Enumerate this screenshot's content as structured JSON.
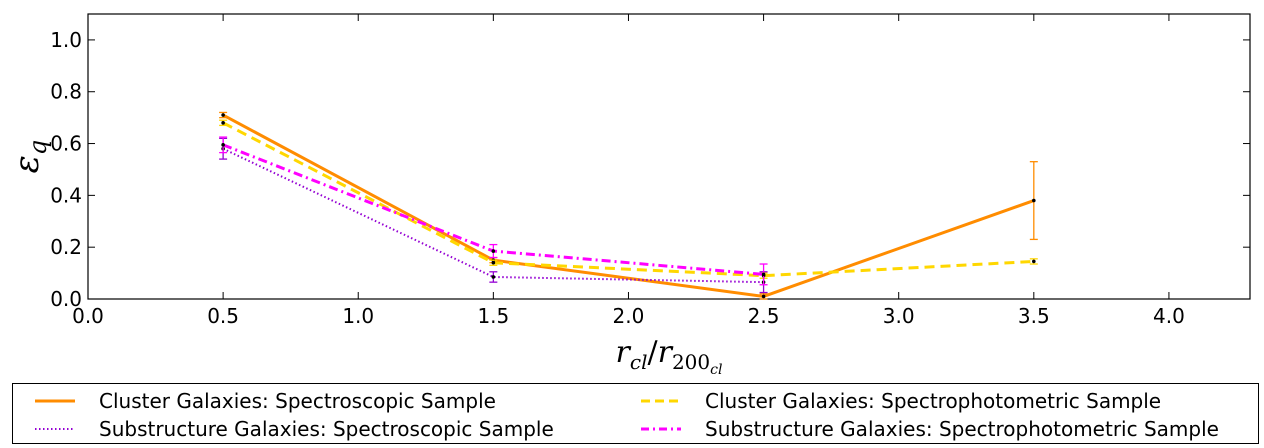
{
  "chart_data": {
    "type": "line",
    "xlabel_main": "r",
    "xlabel_sub": "cl",
    "xlabel_den": "r",
    "xlabel_den_sub": "200",
    "xlabel_den_subsub": "cl",
    "ylabel_main": "ε",
    "ylabel_sub": "q",
    "xlim": [
      0.0,
      4.3
    ],
    "ylim": [
      0.0,
      1.1
    ],
    "xticks": [
      0.0,
      0.5,
      1.0,
      1.5,
      2.0,
      2.5,
      3.0,
      3.5,
      4.0
    ],
    "xtick_labels": [
      "0.0",
      "0.5",
      "1.0",
      "1.5",
      "2.0",
      "2.5",
      "3.0",
      "3.5",
      "4.0"
    ],
    "yticks": [
      0.0,
      0.2,
      0.4,
      0.6,
      0.8,
      1.0
    ],
    "ytick_labels": [
      "0.0",
      "0.2",
      "0.4",
      "0.6",
      "0.8",
      "1.0"
    ],
    "legend_placement": "below",
    "series": [
      {
        "name": "Cluster Galaxies: Spectroscopic Sample",
        "color": "#ff8c00",
        "style": "solid",
        "x": [
          0.5,
          1.5,
          2.5,
          3.5
        ],
        "y": [
          0.71,
          0.15,
          0.01,
          0.38
        ],
        "err": [
          0.01,
          0.01,
          0.01,
          0.15
        ]
      },
      {
        "name": "Cluster Galaxies: Spectrophotometric Sample",
        "color": "#ffd700",
        "style": "dashed",
        "x": [
          0.5,
          1.5,
          2.5,
          3.5
        ],
        "y": [
          0.68,
          0.14,
          0.09,
          0.145
        ],
        "err": [
          0.01,
          0.01,
          0.01,
          0.01
        ]
      },
      {
        "name": "Substructure Galaxies: Spectroscopic Sample",
        "color": "#9400d3",
        "style": "dotted",
        "x": [
          0.5,
          1.5,
          2.5
        ],
        "y": [
          0.58,
          0.085,
          0.065
        ],
        "err": [
          0.04,
          0.02,
          0.04
        ]
      },
      {
        "name": "Substructure Galaxies: Spectrophotometric Sample",
        "color": "#ff00ff",
        "style": "dashdot",
        "x": [
          0.5,
          1.5,
          2.5
        ],
        "y": [
          0.595,
          0.185,
          0.095
        ],
        "err": [
          0.03,
          0.025,
          0.04
        ]
      }
    ]
  }
}
